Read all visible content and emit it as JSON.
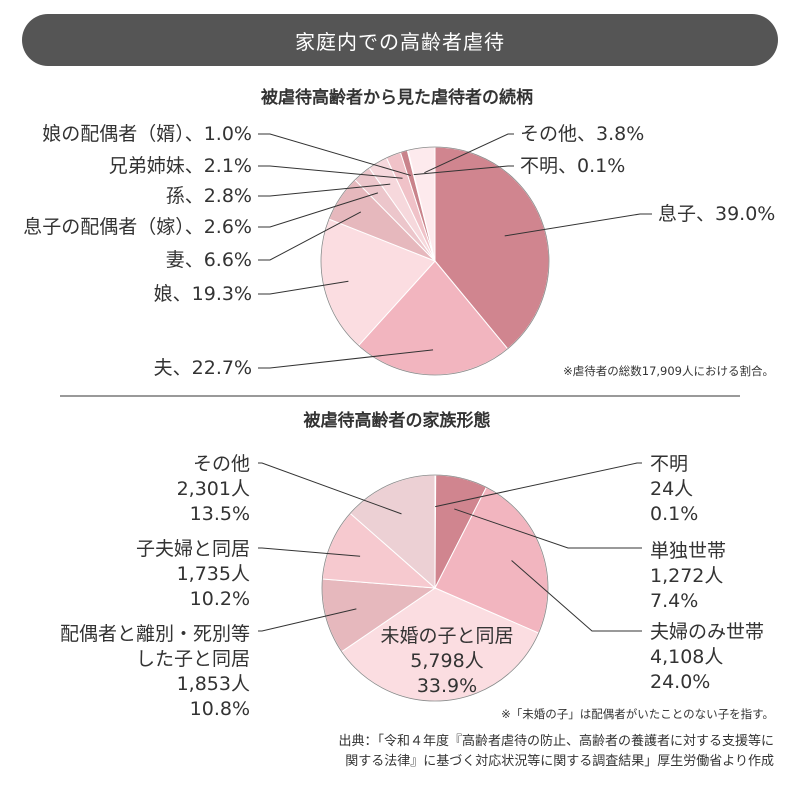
{
  "banner": {
    "title": "家庭内での高齢者虐待"
  },
  "chart_data": [
    {
      "type": "pie",
      "title": "被虐待高齢者から見た虐待者の続柄",
      "slices": [
        {
          "label": "息子、39.0%",
          "value": 39.0,
          "color": "#d0858f"
        },
        {
          "label": "夫、22.7%",
          "value": 22.7,
          "color": "#f2b5bf"
        },
        {
          "label": "娘、19.3%",
          "value": 19.3,
          "color": "#fbdde1"
        },
        {
          "label": "妻、6.6%",
          "value": 6.6,
          "color": "#e6b8bd"
        },
        {
          "label": "息子の配偶者（嫁）、2.6%",
          "value": 2.6,
          "color": "#ecc6cb"
        },
        {
          "label": "孫、2.8%",
          "value": 2.8,
          "color": "#f6d8dc"
        },
        {
          "label": "兄弟姉妹、2.1%",
          "value": 2.1,
          "color": "#f0c2c8"
        },
        {
          "label": "娘の配偶者（婿）、1.0%",
          "value": 1.0,
          "color": "#c9838b"
        },
        {
          "label": "不明、0.1%",
          "value": 0.1,
          "color": "#b87880"
        },
        {
          "label": "その他、3.8%",
          "value": 3.8,
          "color": "#fdeaed"
        }
      ],
      "note": "※虐待者の総数17,909人における割合。"
    },
    {
      "type": "pie",
      "title": "被虐待高齢者の家族形態",
      "slices": [
        {
          "lines": [
            "不明",
            "24人",
            "0.1%"
          ],
          "value": 0.1,
          "color": "#b87880"
        },
        {
          "lines": [
            "単独世帯",
            "1,272人",
            "7.4%"
          ],
          "value": 7.4,
          "color": "#d0858f"
        },
        {
          "lines": [
            "夫婦のみ世帯",
            "4,108人",
            "24.0%"
          ],
          "value": 24.0,
          "color": "#f2b5bf"
        },
        {
          "lines": [
            "未婚の子と同居",
            "5,798人",
            "33.9%"
          ],
          "value": 33.9,
          "color": "#fbdde1"
        },
        {
          "lines": [
            "配偶者と離別・死別等",
            "した子と同居",
            "1,853人",
            "10.8%"
          ],
          "value": 10.8,
          "color": "#e6b8bd"
        },
        {
          "lines": [
            "子夫婦と同居",
            "1,735人",
            "10.2%"
          ],
          "value": 10.2,
          "color": "#f6c9cf"
        },
        {
          "lines": [
            "その他",
            "2,301人",
            "13.5%"
          ],
          "value": 13.5,
          "color": "#ecd0d4"
        }
      ],
      "note": "※「未婚の子」は配偶者がいたことのない子を指す。"
    }
  ],
  "source": {
    "line1": "出典：「令和４年度『高齢者虐待の防止、高齢者の養護者に対する支援等に",
    "line2": "関する法律』に基づく対応状況等に関する調査結果」厚生労働省より作成"
  }
}
